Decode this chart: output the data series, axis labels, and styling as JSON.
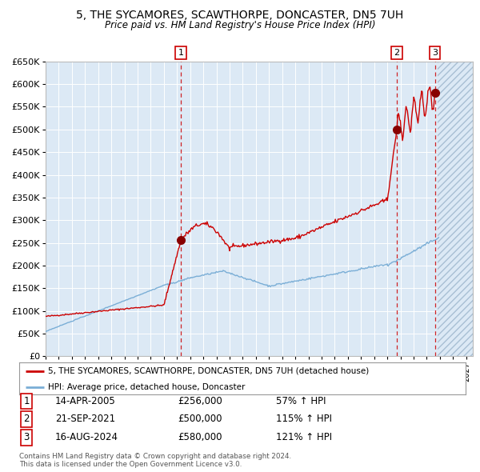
{
  "title1": "5, THE SYCAMORES, SCAWTHORPE, DONCASTER, DN5 7UH",
  "title2": "Price paid vs. HM Land Registry's House Price Index (HPI)",
  "bg_color": "#dce9f5",
  "hatch_color": "#a8bfd4",
  "red_line_color": "#cc0000",
  "blue_line_color": "#7aaed6",
  "red_dot_color": "#880000",
  "sale_dates": [
    2005.29,
    2021.72,
    2024.62
  ],
  "sale_prices": [
    256000,
    500000,
    580000
  ],
  "sale_labels": [
    "1",
    "2",
    "3"
  ],
  "sale_date_strings": [
    "14-APR-2005",
    "21-SEP-2021",
    "16-AUG-2024"
  ],
  "sale_price_strings": [
    "£256,000",
    "£500,000",
    "£580,000"
  ],
  "sale_hpi_strings": [
    "57% ↑ HPI",
    "115% ↑ HPI",
    "121% ↑ HPI"
  ],
  "legend_red": "5, THE SYCAMORES, SCAWTHORPE, DONCASTER, DN5 7UH (detached house)",
  "legend_blue": "HPI: Average price, detached house, Doncaster",
  "footnote1": "Contains HM Land Registry data © Crown copyright and database right 2024.",
  "footnote2": "This data is licensed under the Open Government Licence v3.0.",
  "ylim": [
    0,
    650000
  ],
  "xlim_start": 1995.0,
  "xlim_end": 2027.5,
  "future_start": 2024.83
}
